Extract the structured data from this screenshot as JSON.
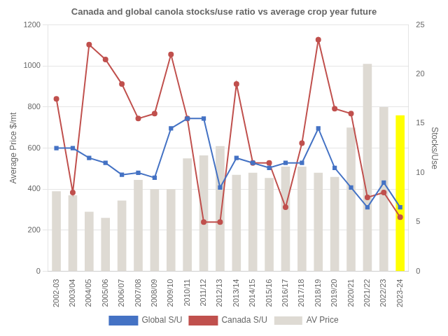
{
  "chart_data": {
    "type": "bar",
    "title": "Canada and global canola stocks/use ratio vs average crop year future",
    "categories": [
      "2002-03",
      "2003/04",
      "2004/05",
      "2005/06",
      "2006/07",
      "2007/08",
      "2008/09",
      "2009/10",
      "2010/11",
      "2011/12",
      "2012/13",
      "2013/14",
      "2014/15",
      "2015/16",
      "2016/17",
      "2017/18",
      "2018/19",
      "2019/20",
      "2020/21",
      "2021/22",
      "2022/23",
      "2023-24"
    ],
    "series": [
      {
        "name": "AV Price",
        "type": "bar",
        "colors": [
          "#dedad3",
          "#dedad3",
          "#dedad3",
          "#dedad3",
          "#dedad3",
          "#dedad3",
          "#dedad3",
          "#dedad3",
          "#dedad3",
          "#dedad3",
          "#dedad3",
          "#dedad3",
          "#dedad3",
          "#dedad3",
          "#dedad3",
          "#dedad3",
          "#dedad3",
          "#dedad3",
          "#dedad3",
          "#dedad3",
          "#dedad3",
          "#ffff00"
        ],
        "values": [
          390,
          370,
          290,
          260,
          345,
          445,
          400,
          400,
          550,
          565,
          610,
          470,
          480,
          455,
          510,
          510,
          480,
          460,
          700,
          1010,
          800,
          760
        ]
      },
      {
        "name": "Global S/U",
        "type": "line",
        "axis": "y2",
        "color": "#4472c4",
        "marker": "square",
        "values": [
          12.5,
          12.5,
          11.5,
          11.0,
          9.8,
          10.0,
          9.5,
          14.5,
          15.5,
          15.5,
          8.5,
          11.5,
          11.0,
          10.5,
          11.0,
          11.0,
          14.5,
          10.5,
          8.5,
          6.5,
          9.0,
          6.5
        ]
      },
      {
        "name": "Canada S/U",
        "type": "line",
        "axis": "y2",
        "color": "#c0504d",
        "marker": "circle",
        "values": [
          17.5,
          8.0,
          23.0,
          21.5,
          19.0,
          15.5,
          16.0,
          22.0,
          15.5,
          5.0,
          5.0,
          19.0,
          11.0,
          11.0,
          6.5,
          13.0,
          23.5,
          16.5,
          16.0,
          7.5,
          8.0,
          5.5
        ]
      }
    ],
    "ylabel": "Average Price $/mt",
    "y2label": "Stocks/Use",
    "ylim": [
      0,
      1200
    ],
    "yticks": [
      0,
      200,
      400,
      600,
      800,
      1000,
      1200
    ],
    "y2lim": [
      0,
      25
    ],
    "y2ticks": [
      0,
      5,
      10,
      15,
      20,
      25
    ],
    "grid": true,
    "legend": "bottom"
  }
}
